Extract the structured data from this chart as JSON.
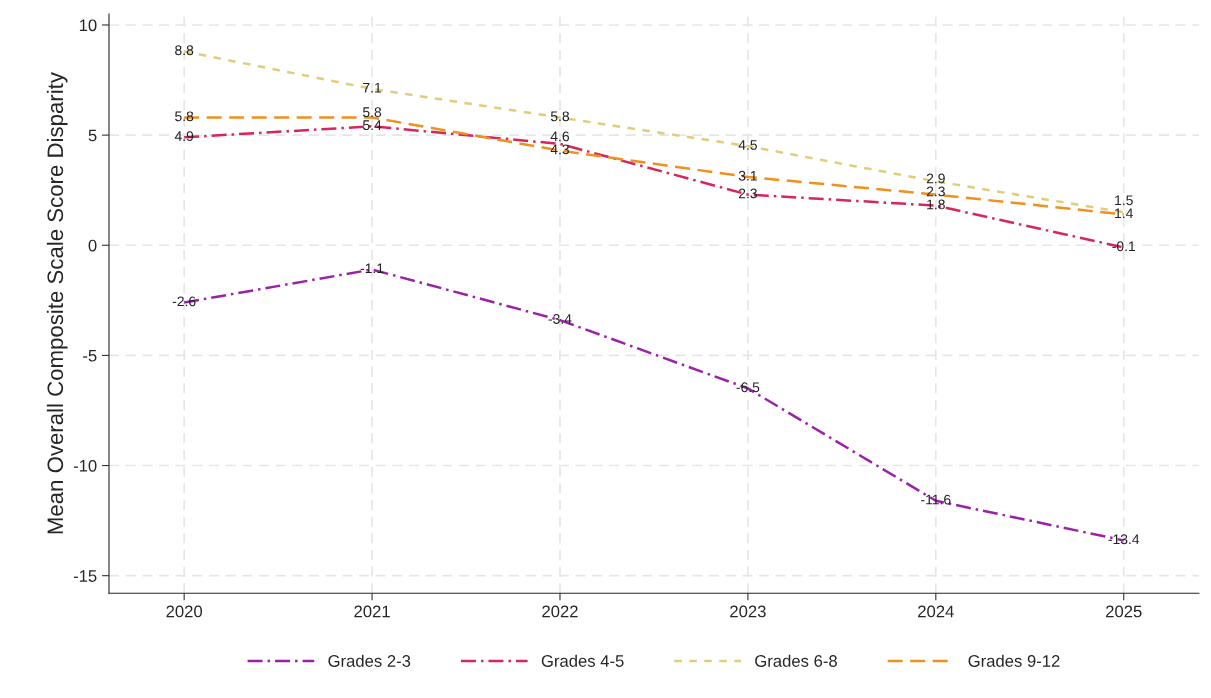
{
  "chart_data": {
    "type": "line",
    "ylabel": "Mean Overall Composite Scale Score Disparity",
    "categories": [
      "2020",
      "2021",
      "2022",
      "2023",
      "2024",
      "2025"
    ],
    "series": [
      {
        "name": "Grades 2-3",
        "color": "#9b22a8",
        "line_style": "dashdot",
        "values": [
          -2.6,
          -1.1,
          -3.4,
          -6.5,
          -11.6,
          -13.4
        ]
      },
      {
        "name": "Grades 4-5",
        "color": "#d6265a",
        "line_style": "dashdot",
        "values": [
          4.9,
          5.4,
          4.6,
          2.3,
          1.8,
          -0.1
        ]
      },
      {
        "name": "Grades 6-8",
        "color": "#e0cd7a",
        "line_style": "dotted",
        "values": [
          8.8,
          7.1,
          5.8,
          4.5,
          2.9,
          1.5
        ]
      },
      {
        "name": "Grades 9-12",
        "color": "#f0901e",
        "line_style": "dashed",
        "values": [
          5.8,
          5.8,
          4.3,
          3.1,
          2.3,
          1.4
        ]
      }
    ],
    "ylim": [
      -15.8,
      10.5
    ],
    "yticks": [
      -15,
      -10,
      -5,
      0,
      5,
      10
    ],
    "grid": true,
    "legend": "bottom",
    "data_labels": true
  }
}
